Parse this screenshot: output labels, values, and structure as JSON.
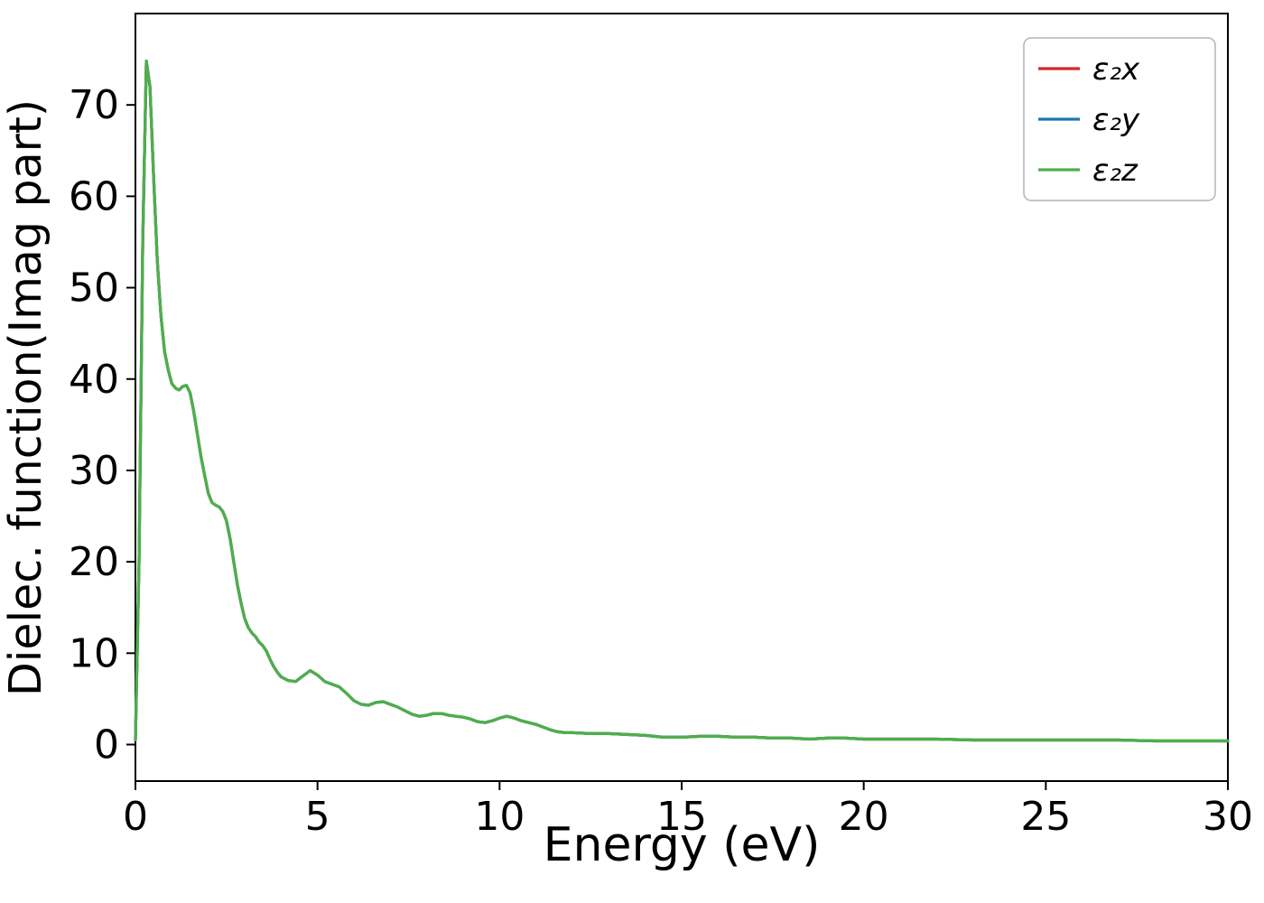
{
  "figure": {
    "background": "#ffffff"
  },
  "chart_data": {
    "type": "line",
    "title": "",
    "xlabel": "Energy (eV)",
    "ylabel": "Dielec. function(Imag part)",
    "xlim": [
      0,
      30
    ],
    "ylim": [
      -4,
      80
    ],
    "xticks": [
      0,
      5,
      10,
      15,
      20,
      25,
      30
    ],
    "yticks": [
      0,
      10,
      20,
      30,
      40,
      50,
      60,
      70
    ],
    "grid": false,
    "legend_position": "upper right",
    "x": [
      0,
      0.1,
      0.2,
      0.3,
      0.4,
      0.5,
      0.6,
      0.7,
      0.8,
      0.9,
      1,
      1.1,
      1.2,
      1.3,
      1.4,
      1.5,
      1.6,
      1.7,
      1.8,
      1.9,
      2,
      2.1,
      2.2,
      2.3,
      2.4,
      2.5,
      2.6,
      2.7,
      2.8,
      2.9,
      3,
      3.1,
      3.2,
      3.3,
      3.4,
      3.5,
      3.6,
      3.7,
      3.8,
      3.9,
      4,
      4.2,
      4.4,
      4.6,
      4.8,
      5,
      5.2,
      5.4,
      5.6,
      5.8,
      6,
      6.2,
      6.4,
      6.6,
      6.8,
      7,
      7.2,
      7.4,
      7.6,
      7.8,
      8,
      8.2,
      8.4,
      8.6,
      8.8,
      9,
      9.2,
      9.4,
      9.6,
      9.8,
      10,
      10.2,
      10.4,
      10.6,
      10.8,
      11,
      11.2,
      11.4,
      11.6,
      11.8,
      12,
      12.5,
      13,
      13.5,
      14,
      14.5,
      15,
      15.5,
      16,
      16.5,
      17,
      17.5,
      18,
      18.5,
      19,
      19.5,
      20,
      21,
      22,
      23,
      24,
      25,
      26,
      27,
      28,
      29,
      30
    ],
    "series": [
      {
        "name": "ε₂x",
        "color": "#d62728",
        "values": [
          0.5,
          20,
          55,
          74.8,
          72,
          62,
          53,
          47,
          43,
          41,
          39.5,
          39,
          38.8,
          39.2,
          39.3,
          38.5,
          36.5,
          34,
          31.5,
          29.5,
          27.5,
          26.5,
          26.2,
          26,
          25.5,
          24.5,
          22.5,
          20,
          17.5,
          15.5,
          13.8,
          12.8,
          12.2,
          11.8,
          11.2,
          10.8,
          10.2,
          9.3,
          8.5,
          7.9,
          7.4,
          7,
          6.9,
          7.5,
          8.1,
          7.6,
          6.9,
          6.6,
          6.3,
          5.6,
          4.8,
          4.4,
          4.3,
          4.6,
          4.7,
          4.4,
          4.1,
          3.7,
          3.3,
          3.1,
          3.2,
          3.4,
          3.4,
          3.2,
          3.1,
          3,
          2.8,
          2.5,
          2.4,
          2.6,
          2.9,
          3.1,
          2.9,
          2.6,
          2.4,
          2.2,
          1.9,
          1.6,
          1.4,
          1.3,
          1.3,
          1.2,
          1.2,
          1.1,
          1,
          0.8,
          0.8,
          0.9,
          0.9,
          0.8,
          0.8,
          0.7,
          0.7,
          0.6,
          0.7,
          0.7,
          0.6,
          0.6,
          0.6,
          0.5,
          0.5,
          0.5,
          0.5,
          0.5,
          0.4,
          0.4,
          0.4
        ]
      },
      {
        "name": "ε₂y",
        "color": "#1f77b4",
        "values": [
          0.5,
          20,
          55,
          74.8,
          72,
          62,
          53,
          47,
          43,
          41,
          39.5,
          39,
          38.8,
          39.2,
          39.3,
          38.5,
          36.5,
          34,
          31.5,
          29.5,
          27.5,
          26.5,
          26.2,
          26,
          25.5,
          24.5,
          22.5,
          20,
          17.5,
          15.5,
          13.8,
          12.8,
          12.2,
          11.8,
          11.2,
          10.8,
          10.2,
          9.3,
          8.5,
          7.9,
          7.4,
          7,
          6.9,
          7.5,
          8.1,
          7.6,
          6.9,
          6.6,
          6.3,
          5.6,
          4.8,
          4.4,
          4.3,
          4.6,
          4.7,
          4.4,
          4.1,
          3.7,
          3.3,
          3.1,
          3.2,
          3.4,
          3.4,
          3.2,
          3.1,
          3,
          2.8,
          2.5,
          2.4,
          2.6,
          2.9,
          3.1,
          2.9,
          2.6,
          2.4,
          2.2,
          1.9,
          1.6,
          1.4,
          1.3,
          1.3,
          1.2,
          1.2,
          1.1,
          1,
          0.8,
          0.8,
          0.9,
          0.9,
          0.8,
          0.8,
          0.7,
          0.7,
          0.6,
          0.7,
          0.7,
          0.6,
          0.6,
          0.6,
          0.5,
          0.5,
          0.5,
          0.5,
          0.5,
          0.4,
          0.4,
          0.4
        ]
      },
      {
        "name": "ε₂z",
        "color": "#4daf4a",
        "values": [
          0.5,
          20,
          55,
          74.8,
          72,
          62,
          53,
          47,
          43,
          41,
          39.5,
          39,
          38.8,
          39.2,
          39.3,
          38.5,
          36.5,
          34,
          31.5,
          29.5,
          27.5,
          26.5,
          26.2,
          26,
          25.5,
          24.5,
          22.5,
          20,
          17.5,
          15.5,
          13.8,
          12.8,
          12.2,
          11.8,
          11.2,
          10.8,
          10.2,
          9.3,
          8.5,
          7.9,
          7.4,
          7,
          6.9,
          7.5,
          8.1,
          7.6,
          6.9,
          6.6,
          6.3,
          5.6,
          4.8,
          4.4,
          4.3,
          4.6,
          4.7,
          4.4,
          4.1,
          3.7,
          3.3,
          3.1,
          3.2,
          3.4,
          3.4,
          3.2,
          3.1,
          3,
          2.8,
          2.5,
          2.4,
          2.6,
          2.9,
          3.1,
          2.9,
          2.6,
          2.4,
          2.2,
          1.9,
          1.6,
          1.4,
          1.3,
          1.3,
          1.2,
          1.2,
          1.1,
          1,
          0.8,
          0.8,
          0.9,
          0.9,
          0.8,
          0.8,
          0.7,
          0.7,
          0.6,
          0.7,
          0.7,
          0.6,
          0.6,
          0.6,
          0.5,
          0.5,
          0.5,
          0.5,
          0.5,
          0.4,
          0.4,
          0.4
        ]
      }
    ]
  }
}
